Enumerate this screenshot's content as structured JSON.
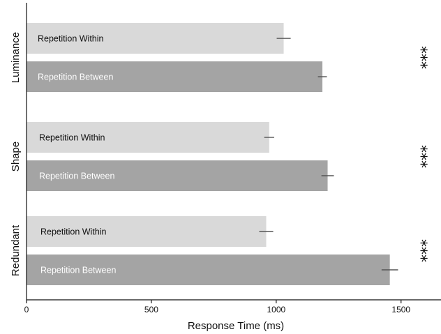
{
  "chart_data": {
    "type": "bar",
    "orientation": "horizontal",
    "title": "",
    "xlabel": "Response Time (ms)",
    "ylabel": "",
    "xlim": [
      0,
      1660
    ],
    "xticks": [
      0,
      500,
      1000,
      1500
    ],
    "grid": false,
    "legend": "none",
    "groups": [
      {
        "name": "Luminance",
        "significance": "***",
        "bars": [
          {
            "name": "Repetition Within",
            "value": 1030,
            "error": 28,
            "color": "#d9d9d9",
            "label_color": "#111111"
          },
          {
            "name": "Repetition Between",
            "value": 1185,
            "error": 18,
            "color": "#a4a4a4",
            "label_color": "#ffffff"
          }
        ]
      },
      {
        "name": "Shape",
        "significance": "***",
        "bars": [
          {
            "name": "Repetition Within",
            "value": 972,
            "error": 20,
            "color": "#d9d9d9",
            "label_color": "#111111"
          },
          {
            "name": "Repetition Between",
            "value": 1206,
            "error": 25,
            "color": "#a4a4a4",
            "label_color": "#ffffff"
          }
        ]
      },
      {
        "name": "Redundant",
        "significance": "***",
        "bars": [
          {
            "name": "Repetition Within",
            "value": 960,
            "error": 28,
            "color": "#d9d9d9",
            "label_color": "#111111"
          },
          {
            "name": "Repetition Between",
            "value": 1455,
            "error": 33,
            "color": "#a4a4a4",
            "label_color": "#ffffff"
          }
        ]
      }
    ]
  }
}
